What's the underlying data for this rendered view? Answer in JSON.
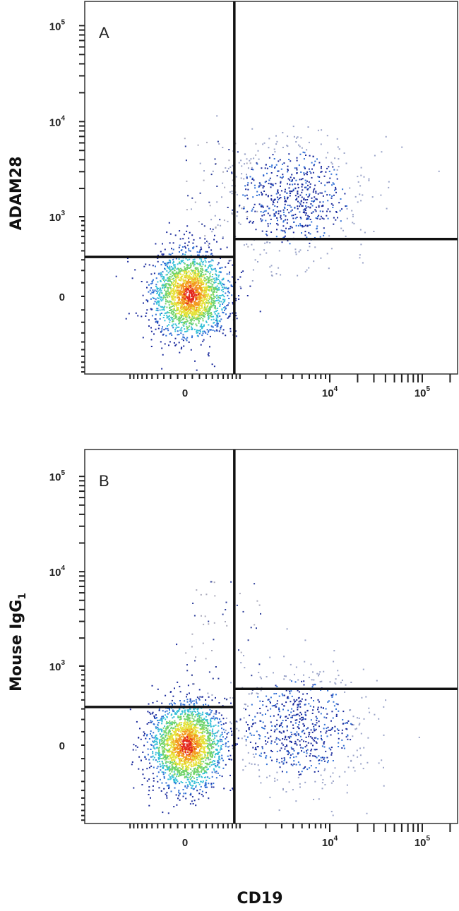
{
  "chart_data": [
    {
      "type": "scatter",
      "subtype": "flow-cytometry-density-dot-plot",
      "panel_label": "A",
      "xlabel": "CD19",
      "ylabel": "ADAM28",
      "x_scale": "biexponential",
      "y_scale": "biexponential",
      "x_ticks": [
        {
          "value": 0,
          "label": "0"
        },
        {
          "value": 10000,
          "label": "10",
          "exp": "4"
        },
        {
          "value": 100000,
          "label": "10",
          "exp": "5"
        }
      ],
      "y_ticks": [
        {
          "value": 0,
          "label": "0"
        },
        {
          "value": 1000,
          "label": "10",
          "exp": "3"
        },
        {
          "value": 10000,
          "label": "10",
          "exp": "4"
        },
        {
          "value": 100000,
          "label": "10",
          "exp": "5"
        }
      ],
      "quadrant_gates": {
        "x": 850,
        "y_left": 330,
        "y_right": 560
      },
      "populations": [
        {
          "center_x": 60,
          "center_y": 20,
          "relative_size": "large"
        },
        {
          "center_x": 4000,
          "center_y": 1600,
          "relative_size": "medium"
        }
      ],
      "colormap": [
        "#1a2a9c",
        "#2f6fd6",
        "#35c0d8",
        "#6fd36a",
        "#e6e23a",
        "#f39a1e",
        "#e3281e"
      ]
    },
    {
      "type": "scatter",
      "subtype": "flow-cytometry-density-dot-plot",
      "panel_label": "B",
      "xlabel": "CD19",
      "ylabel": "Mouse IgG",
      "ylabel_sub": "1",
      "x_scale": "biexponential",
      "y_scale": "biexponential",
      "x_ticks": [
        {
          "value": 0,
          "label": "0"
        },
        {
          "value": 10000,
          "label": "10",
          "exp": "4"
        },
        {
          "value": 100000,
          "label": "10",
          "exp": "5"
        }
      ],
      "y_ticks": [
        {
          "value": 0,
          "label": "0"
        },
        {
          "value": 1000,
          "label": "10",
          "exp": "3"
        },
        {
          "value": 10000,
          "label": "10",
          "exp": "4"
        },
        {
          "value": 100000,
          "label": "10",
          "exp": "5"
        }
      ],
      "quadrant_gates": {
        "x": 850,
        "y_left": 320,
        "y_right": 550
      },
      "populations": [
        {
          "center_x": 20,
          "center_y": 0,
          "relative_size": "large"
        },
        {
          "center_x": 4500,
          "center_y": 140,
          "relative_size": "medium"
        }
      ],
      "colormap": [
        "#1a2a9c",
        "#2f6fd6",
        "#35c0d8",
        "#6fd36a",
        "#e6e23a",
        "#f39a1e",
        "#e3281e"
      ]
    }
  ],
  "shared_xlabel": "CD19"
}
